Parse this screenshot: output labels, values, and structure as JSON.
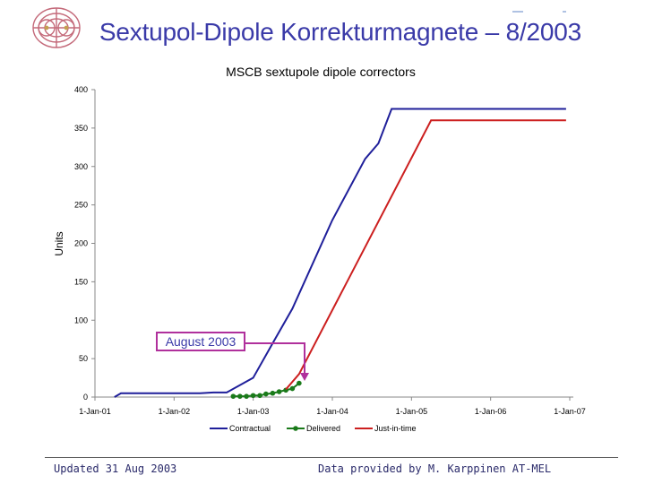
{
  "slide": {
    "title": "Sextupol-Dipole Korrekturmagnete – 8/2003",
    "footer_left": "Updated 31 Aug 2003",
    "footer_right": "Data provided by M. Karppinen  AT-MEL",
    "logo_icon": "cern-logo-icon"
  },
  "colors": {
    "title": "#3a3aa8",
    "contractual": "#1f1f9a",
    "delivered": "#1a7a1a",
    "just_in_time": "#cc1f1f",
    "annotation": "#b0309c"
  },
  "chart_data": {
    "type": "line",
    "title": "MSCB sextupole dipole correctors",
    "ylabel": "Units",
    "xlabel": "",
    "ylim": [
      0,
      400
    ],
    "yticks": [
      0,
      50,
      100,
      150,
      200,
      250,
      300,
      350,
      400
    ],
    "x_range": [
      "2001-01-01",
      "2007-01-01"
    ],
    "xticks": [
      "1-Jan-01",
      "1-Jan-02",
      "1-Jan-03",
      "1-Jan-04",
      "1-Jan-05",
      "1-Jan-06",
      "1-Jan-07"
    ],
    "grid": false,
    "legend": "bottom",
    "series": [
      {
        "name": "Contractual",
        "x": [
          "2001-04-01",
          "2001-05-01",
          "2002-05-01",
          "2002-07-01",
          "2002-09-01",
          "2003-01-01",
          "2003-04-01",
          "2003-07-01",
          "2004-01-01",
          "2004-06-01",
          "2004-08-01",
          "2004-10-01",
          "2006-12-15"
        ],
        "values": [
          0,
          5,
          5,
          6,
          6,
          25,
          70,
          115,
          230,
          310,
          330,
          375,
          375
        ]
      },
      {
        "name": "Delivered",
        "x": [
          "2002-10-01",
          "2002-11-01",
          "2002-12-01",
          "2003-01-01",
          "2003-02-01",
          "2003-03-01",
          "2003-04-01",
          "2003-05-01",
          "2003-06-01",
          "2003-07-01",
          "2003-08-01"
        ],
        "values": [
          1,
          1,
          1,
          2,
          2,
          4,
          5,
          7,
          9,
          11,
          18
        ]
      },
      {
        "name": "Just-in-time",
        "x": [
          "2003-06-01",
          "2003-08-01",
          "2005-04-01",
          "2006-12-15"
        ],
        "values": [
          10,
          30,
          360,
          360
        ]
      }
    ],
    "annotations": [
      {
        "text": "August 2003",
        "x": "2003-08-01",
        "y": 23
      }
    ]
  }
}
